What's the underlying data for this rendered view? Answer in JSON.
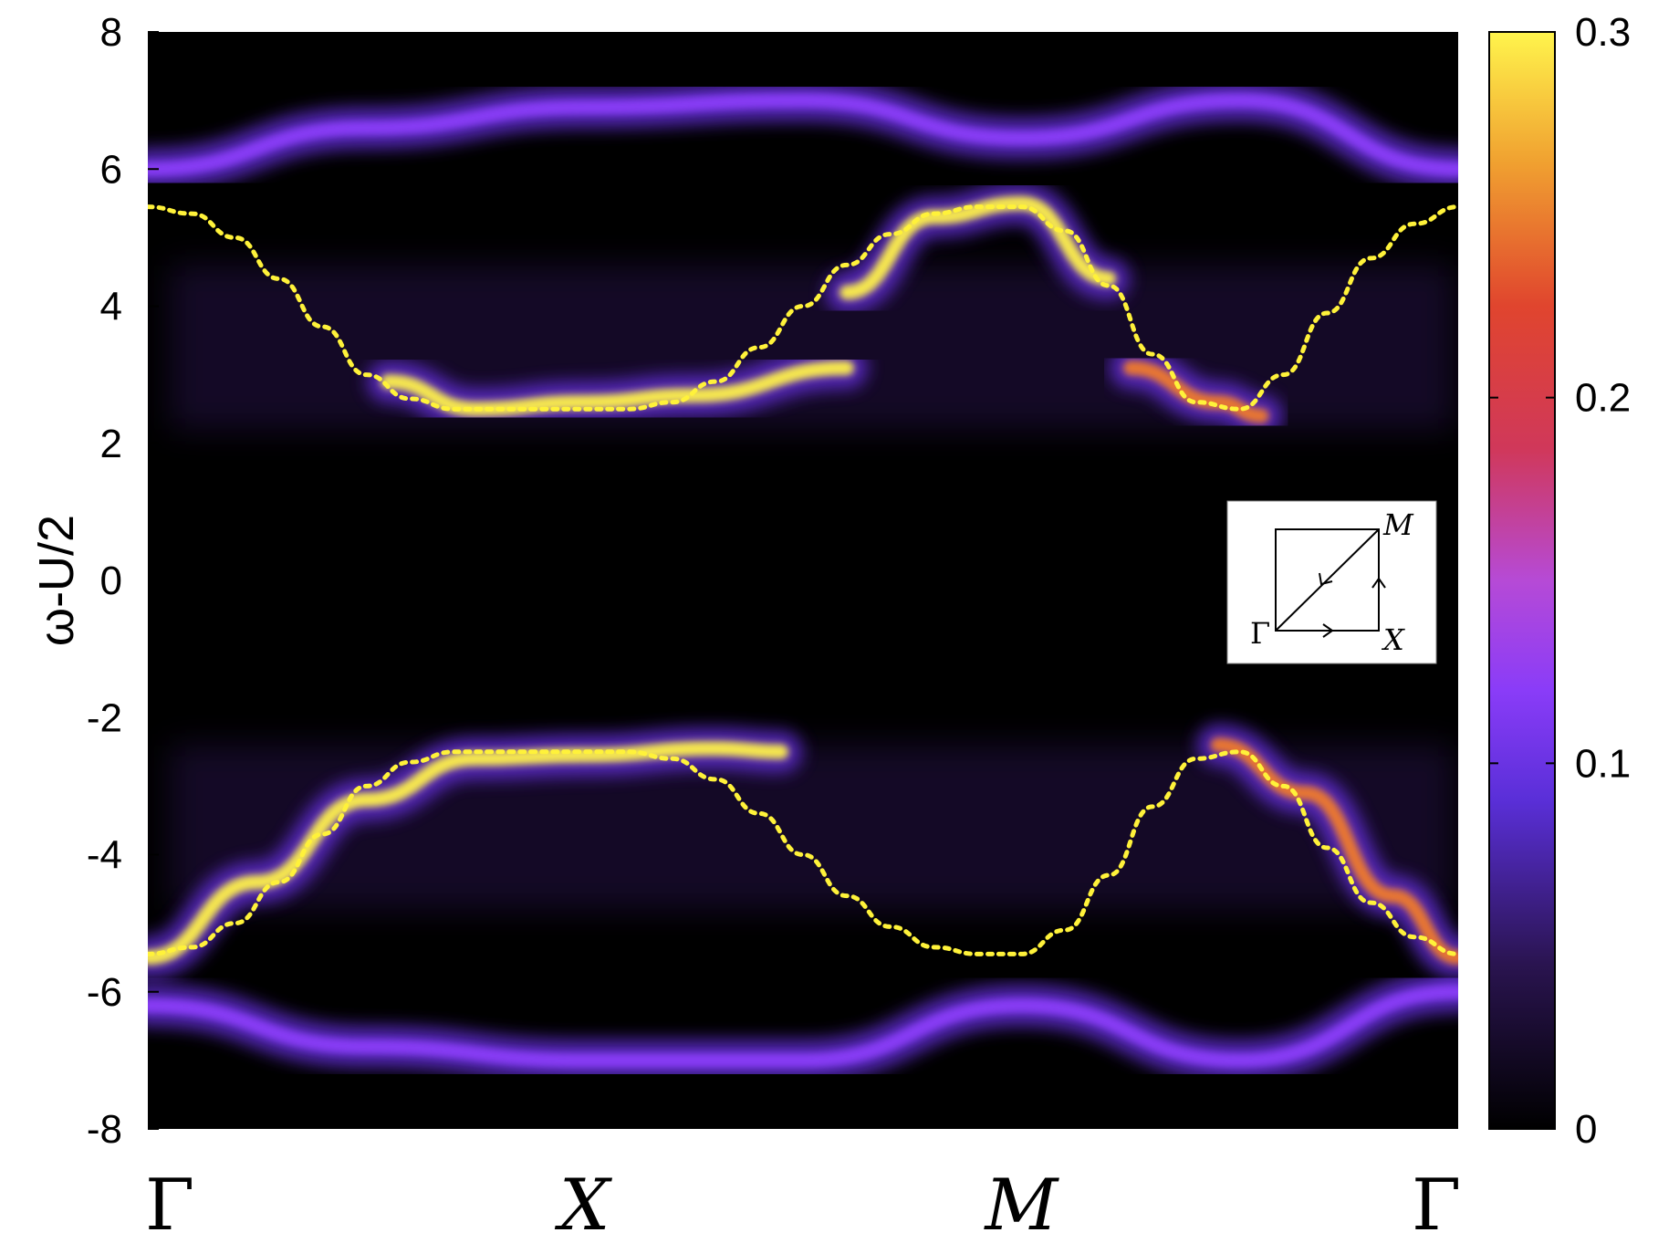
{
  "chart_data": {
    "type": "heatmap",
    "title": "",
    "xlabel": "",
    "ylabel": "ω-U/2",
    "ylim": [
      -8,
      8
    ],
    "y_ticks": [
      "8",
      "6",
      "4",
      "2",
      "0",
      "-2",
      "-4",
      "-6",
      "-8"
    ],
    "x_ticks": [
      {
        "label": "Γ",
        "italic": false
      },
      {
        "label": "X",
        "italic": true
      },
      {
        "label": "M",
        "italic": true
      },
      {
        "label": "Γ",
        "italic": false
      }
    ],
    "colorbar": {
      "range": [
        0,
        0.3
      ],
      "tick_labels": [
        "0.3",
        "0.2",
        "0.1",
        "0"
      ],
      "tick_values": [
        0.3,
        0.2,
        0.1,
        0
      ],
      "colormap": [
        "#000000",
        "#3a1a5e",
        "#7a3cff",
        "#b94fe0",
        "#d93a4a",
        "#ee7a2a",
        "#fff24a"
      ]
    },
    "dispersion_dotted": {
      "color": "#fff23a",
      "x": [
        0,
        0.1,
        0.2,
        0.3,
        0.4,
        0.5,
        0.6,
        0.7,
        0.8,
        0.9,
        1.0,
        1.1,
        1.2,
        1.3,
        1.4,
        1.5,
        1.6,
        1.7,
        1.8,
        1.9,
        2.0,
        2.1,
        2.2,
        2.3,
        2.4,
        2.5,
        2.6,
        2.7,
        2.8,
        2.9,
        3.0
      ],
      "upper_band": [
        5.45,
        5.35,
        5.0,
        4.4,
        3.7,
        3.0,
        2.65,
        2.5,
        2.5,
        2.5,
        2.5,
        2.5,
        2.6,
        2.9,
        3.4,
        4.0,
        4.6,
        5.05,
        5.35,
        5.45,
        5.45,
        5.1,
        4.3,
        3.3,
        2.6,
        2.5,
        3.0,
        3.9,
        4.7,
        5.2,
        5.45
      ],
      "lower_band": [
        -5.45,
        -5.35,
        -5.0,
        -4.4,
        -3.7,
        -3.0,
        -2.65,
        -2.5,
        -2.5,
        -2.5,
        -2.5,
        -2.5,
        -2.6,
        -2.9,
        -3.4,
        -4.0,
        -4.6,
        -5.05,
        -5.35,
        -5.45,
        -5.45,
        -5.1,
        -4.3,
        -3.3,
        -2.6,
        -2.5,
        -3.0,
        -3.9,
        -4.7,
        -5.2,
        -5.45
      ]
    },
    "spectral_bands": [
      {
        "name": "upper-satellite",
        "x": [
          0,
          0.5,
          1.0,
          1.5,
          2.0,
          2.5,
          3.0
        ],
        "y": [
          6.0,
          6.6,
          6.9,
          7.0,
          6.45,
          7.0,
          6.0
        ],
        "intensity": 0.12
      },
      {
        "name": "upper-qp-a",
        "x": [
          0.55,
          0.75,
          1.0,
          1.25,
          1.6
        ],
        "y": [
          2.9,
          2.5,
          2.6,
          2.7,
          3.1
        ],
        "intensity": 0.3
      },
      {
        "name": "upper-qp-b",
        "x": [
          1.6,
          1.8,
          2.0,
          2.2
        ],
        "y": [
          4.2,
          5.3,
          5.5,
          4.4
        ],
        "intensity": 0.27
      },
      {
        "name": "upper-qp-c",
        "x": [
          2.25,
          2.45,
          2.55
        ],
        "y": [
          3.1,
          2.6,
          2.4
        ],
        "intensity": 0.22
      },
      {
        "name": "lower-qp-a",
        "x": [
          0,
          0.25,
          0.5,
          0.75,
          1.0,
          1.3,
          1.45
        ],
        "y": [
          -5.5,
          -4.4,
          -3.2,
          -2.6,
          -2.55,
          -2.45,
          -2.5
        ],
        "intensity": 0.28
      },
      {
        "name": "lower-qp-b",
        "x": [
          2.45,
          2.65,
          2.85,
          3.0
        ],
        "y": [
          -2.4,
          -3.1,
          -4.6,
          -5.5
        ],
        "intensity": 0.25
      },
      {
        "name": "lower-satellite",
        "x": [
          0,
          0.5,
          1.0,
          1.5,
          2.0,
          2.5,
          3.0
        ],
        "y": [
          -6.2,
          -6.8,
          -7.0,
          -7.0,
          -6.2,
          -7.0,
          -6.0
        ],
        "intensity": 0.12
      }
    ],
    "inset": {
      "labels": {
        "corner_gamma": "Γ",
        "corner_x": "X",
        "corner_m": "M"
      }
    }
  }
}
